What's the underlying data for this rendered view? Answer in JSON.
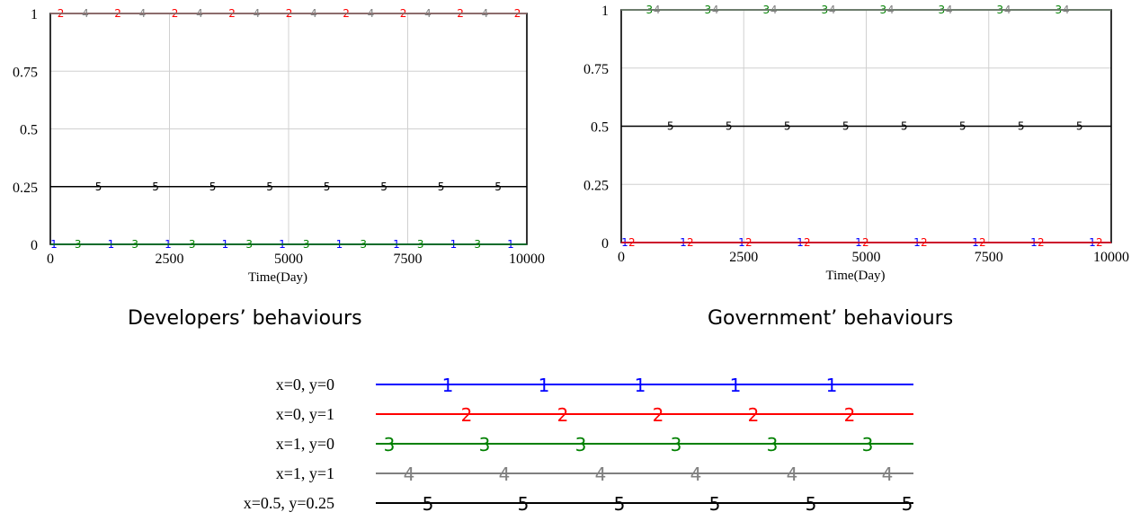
{
  "captions": {
    "left": "Developers’ behaviours",
    "right": "Government’ behaviours"
  },
  "legend": {
    "entries": [
      {
        "marker": "1",
        "label": "x=0, y=0",
        "color": "#0000ff"
      },
      {
        "marker": "2",
        "label": "x=0, y=1",
        "color": "#ff0000"
      },
      {
        "marker": "3",
        "label": "x=1, y=0",
        "color": "#008000"
      },
      {
        "marker": "4",
        "label": "x=1, y=1",
        "color": "#808080"
      },
      {
        "marker": "5",
        "label": "x=0.5, y=0.25",
        "color": "#000000"
      }
    ]
  },
  "chart_data": [
    {
      "type": "line",
      "xlabel": "Time(Day)",
      "ylabel": "",
      "xlim": [
        0,
        10000
      ],
      "ylim": [
        0,
        1
      ],
      "xticks": [
        "0",
        "2500",
        "5000",
        "7500",
        "10000"
      ],
      "yticks": [
        "0",
        "0.25",
        "0.5",
        "0.75",
        "1"
      ],
      "grid": true,
      "series": [
        {
          "marker": "1",
          "color": "#0000ff",
          "x": [
            0,
            10000
          ],
          "y": [
            0,
            0
          ]
        },
        {
          "marker": "2",
          "color": "#ff0000",
          "x": [
            0,
            10000
          ],
          "y": [
            1,
            1
          ]
        },
        {
          "marker": "3",
          "color": "#008000",
          "x": [
            0,
            10000
          ],
          "y": [
            0,
            0
          ]
        },
        {
          "marker": "4",
          "color": "#808080",
          "x": [
            0,
            10000
          ],
          "y": [
            1,
            1
          ]
        },
        {
          "marker": "5",
          "color": "#000000",
          "x": [
            0,
            10000
          ],
          "y": [
            0.25,
            0.25
          ]
        }
      ]
    },
    {
      "type": "line",
      "xlabel": "Time(Day)",
      "ylabel": "",
      "xlim": [
        0,
        10000
      ],
      "ylim": [
        0,
        1
      ],
      "xticks": [
        "0",
        "2500",
        "5000",
        "7500",
        "10000"
      ],
      "yticks": [
        "0",
        "0.25",
        "0.5",
        "0.75",
        "1"
      ],
      "grid": true,
      "series": [
        {
          "marker": "1",
          "color": "#0000ff",
          "x": [
            0,
            10000
          ],
          "y": [
            0,
            0
          ]
        },
        {
          "marker": "2",
          "color": "#ff0000",
          "x": [
            0,
            10000
          ],
          "y": [
            0,
            0
          ]
        },
        {
          "marker": "3",
          "color": "#008000",
          "x": [
            0,
            10000
          ],
          "y": [
            1,
            1
          ]
        },
        {
          "marker": "4",
          "color": "#808080",
          "x": [
            0,
            10000
          ],
          "y": [
            1,
            1
          ]
        },
        {
          "marker": "5",
          "color": "#000000",
          "x": [
            0,
            10000
          ],
          "y": [
            0.5,
            0.5
          ]
        }
      ]
    }
  ]
}
